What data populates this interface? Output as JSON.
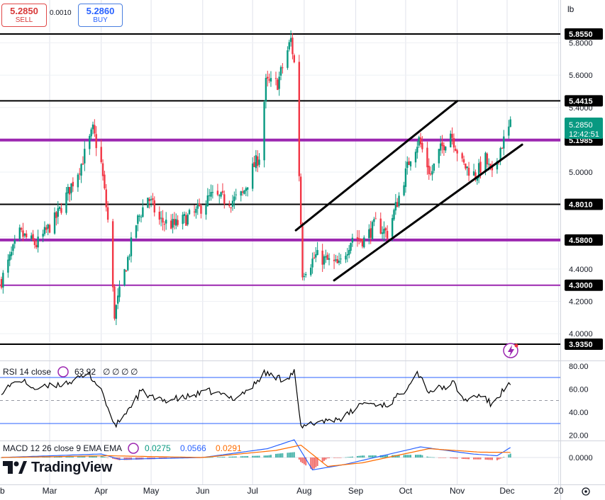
{
  "header": {
    "sell_price": "5.2850",
    "sell_label": "SELL",
    "spread": "0.0010",
    "buy_price": "5.2860",
    "buy_label": "BUY",
    "scale_unit": "lb"
  },
  "brand": {
    "name": "TradingView"
  },
  "colors": {
    "bull": "#089981",
    "bear": "#f23645",
    "level_black": "#000000",
    "level_purple": "#9c27b0",
    "channel": "#000000",
    "rsi": "#000000",
    "rsi_band": "#2962ff",
    "macd": "#2962ff",
    "signal": "#ff6d00",
    "price_label_bg": "#089981"
  },
  "chart_data": [
    {
      "type": "candlestick",
      "title": "",
      "xlabel": "",
      "ylabel": "",
      "ylim": [
        3.9,
        6.0
      ],
      "y_ticks": [
        "5.8000",
        "5.6000",
        "5.4000",
        "5.2000",
        "5.0000",
        "4.8000",
        "4.6000",
        "4.4000",
        "4.2000",
        "4.0000"
      ],
      "x_tick_labels": [
        "b",
        "Mar",
        "Apr",
        "May",
        "Jun",
        "Jul",
        "Aug",
        "Sep",
        "Oct",
        "Nov",
        "Dec",
        "20"
      ],
      "horizontal_levels": [
        {
          "value": 5.855,
          "label": "5.8550",
          "color": "black"
        },
        {
          "value": 5.4415,
          "label": "5.4415",
          "color": "black"
        },
        {
          "value": 5.1985,
          "label": "5.1985",
          "color": "purple"
        },
        {
          "value": 4.801,
          "label": "4.8010",
          "color": "black"
        },
        {
          "value": 4.58,
          "label": "4.5800",
          "color": "purple"
        },
        {
          "value": 4.3,
          "label": "4.3000",
          "color": "purple"
        },
        {
          "value": 3.935,
          "label": "3.9350",
          "color": "black"
        }
      ],
      "channel_lines": [
        {
          "from": {
            "date": "2024-07-27",
            "price": 4.64
          },
          "to": {
            "date": "2024-11-01",
            "price": 5.44
          }
        },
        {
          "from": {
            "date": "2024-08-19",
            "price": 4.33
          },
          "to": {
            "date": "2024-12-10",
            "price": 5.17
          }
        }
      ],
      "last_price": {
        "value": "5.2850",
        "countdown": "12:42:51"
      },
      "anchors": [
        {
          "date": "2024-02-01",
          "price": 4.33
        },
        {
          "date": "2024-02-12",
          "price": 4.62
        },
        {
          "date": "2024-02-22",
          "price": 4.55
        },
        {
          "date": "2024-03-05",
          "price": 4.72
        },
        {
          "date": "2024-03-20",
          "price": 5.05
        },
        {
          "date": "2024-03-27",
          "price": 5.26
        },
        {
          "date": "2024-04-01",
          "price": 5.05
        },
        {
          "date": "2024-04-05",
          "price": 4.7
        },
        {
          "date": "2024-04-09",
          "price": 4.12
        },
        {
          "date": "2024-04-12",
          "price": 4.25
        },
        {
          "date": "2024-04-22",
          "price": 4.68
        },
        {
          "date": "2024-04-29",
          "price": 4.85
        },
        {
          "date": "2024-05-06",
          "price": 4.7
        },
        {
          "date": "2024-05-15",
          "price": 4.67
        },
        {
          "date": "2024-05-28",
          "price": 4.75
        },
        {
          "date": "2024-06-06",
          "price": 4.85
        },
        {
          "date": "2024-06-18",
          "price": 4.82
        },
        {
          "date": "2024-06-25",
          "price": 4.86
        },
        {
          "date": "2024-07-01",
          "price": 5.02
        },
        {
          "date": "2024-07-05",
          "price": 5.1
        },
        {
          "date": "2024-07-09",
          "price": 5.55
        },
        {
          "date": "2024-07-16",
          "price": 5.55
        },
        {
          "date": "2024-07-24",
          "price": 5.82
        },
        {
          "date": "2024-07-27",
          "price": 5.6
        },
        {
          "date": "2024-07-31",
          "price": 4.38
        },
        {
          "date": "2024-08-08",
          "price": 4.48
        },
        {
          "date": "2024-08-15",
          "price": 4.45
        },
        {
          "date": "2024-08-22",
          "price": 4.42
        },
        {
          "date": "2024-08-30",
          "price": 4.6
        },
        {
          "date": "2024-09-06",
          "price": 4.58
        },
        {
          "date": "2024-09-13",
          "price": 4.68
        },
        {
          "date": "2024-09-20",
          "price": 4.62
        },
        {
          "date": "2024-09-27",
          "price": 4.85
        },
        {
          "date": "2024-10-04",
          "price": 5.1
        },
        {
          "date": "2024-10-09",
          "price": 5.2
        },
        {
          "date": "2024-10-16",
          "price": 4.98
        },
        {
          "date": "2024-10-21",
          "price": 5.12
        },
        {
          "date": "2024-10-28",
          "price": 5.25
        },
        {
          "date": "2024-11-04",
          "price": 5.05
        },
        {
          "date": "2024-11-12",
          "price": 4.98
        },
        {
          "date": "2024-11-18",
          "price": 5.08
        },
        {
          "date": "2024-11-22",
          "price": 4.97
        },
        {
          "date": "2024-11-27",
          "price": 5.15
        },
        {
          "date": "2024-12-03",
          "price": 5.29
        }
      ]
    },
    {
      "type": "line",
      "title": "RSI 14 close",
      "value": "63.92",
      "placeholders": [
        "∅",
        "∅",
        "∅",
        "∅"
      ],
      "ylim": [
        17,
        82
      ],
      "y_ticks": [
        "80.00",
        "60.00",
        "40.00",
        "20.00"
      ],
      "bands": [
        70,
        50,
        30
      ],
      "anchors": [
        {
          "date": "2024-02-01",
          "value": 58
        },
        {
          "date": "2024-02-12",
          "value": 68
        },
        {
          "date": "2024-02-22",
          "value": 60
        },
        {
          "date": "2024-03-10",
          "value": 65
        },
        {
          "date": "2024-03-25",
          "value": 72
        },
        {
          "date": "2024-04-01",
          "value": 60
        },
        {
          "date": "2024-04-09",
          "value": 27
        },
        {
          "date": "2024-04-15",
          "value": 38
        },
        {
          "date": "2024-04-25",
          "value": 58
        },
        {
          "date": "2024-05-05",
          "value": 50
        },
        {
          "date": "2024-05-20",
          "value": 52
        },
        {
          "date": "2024-06-05",
          "value": 58
        },
        {
          "date": "2024-06-20",
          "value": 52
        },
        {
          "date": "2024-07-01",
          "value": 62
        },
        {
          "date": "2024-07-08",
          "value": 74
        },
        {
          "date": "2024-07-20",
          "value": 68
        },
        {
          "date": "2024-07-26",
          "value": 75
        },
        {
          "date": "2024-07-30",
          "value": 26
        },
        {
          "date": "2024-08-10",
          "value": 32
        },
        {
          "date": "2024-08-25",
          "value": 35
        },
        {
          "date": "2024-09-05",
          "value": 48
        },
        {
          "date": "2024-09-20",
          "value": 46
        },
        {
          "date": "2024-09-30",
          "value": 58
        },
        {
          "date": "2024-10-05",
          "value": 70
        },
        {
          "date": "2024-10-08",
          "value": 75
        },
        {
          "date": "2024-10-15",
          "value": 58
        },
        {
          "date": "2024-10-25",
          "value": 62
        },
        {
          "date": "2024-10-30",
          "value": 65
        },
        {
          "date": "2024-11-05",
          "value": 50
        },
        {
          "date": "2024-11-15",
          "value": 55
        },
        {
          "date": "2024-11-22",
          "value": 46
        },
        {
          "date": "2024-11-28",
          "value": 58
        },
        {
          "date": "2024-12-03",
          "value": 64
        }
      ]
    },
    {
      "type": "line",
      "title": "MACD 12 26 close 9 EMA EMA",
      "values": [
        "0.0275",
        "0.0566",
        "0.0291"
      ],
      "ylim": [
        -0.12,
        0.12
      ],
      "y_ticks": [
        "0.0000"
      ],
      "series": [
        {
          "key": "macd",
          "anchors": [
            {
              "date": "2024-02-01",
              "value": 0.0
            },
            {
              "date": "2024-04-01",
              "value": 0.02
            },
            {
              "date": "2024-04-12",
              "value": -0.01
            },
            {
              "date": "2024-06-01",
              "value": 0.0
            },
            {
              "date": "2024-07-10",
              "value": 0.05
            },
            {
              "date": "2024-07-26",
              "value": 0.1
            },
            {
              "date": "2024-08-06",
              "value": -0.07
            },
            {
              "date": "2024-08-25",
              "value": -0.04
            },
            {
              "date": "2024-10-10",
              "value": 0.06
            },
            {
              "date": "2024-11-10",
              "value": 0.02
            },
            {
              "date": "2024-11-25",
              "value": 0.01
            },
            {
              "date": "2024-12-03",
              "value": 0.0566
            }
          ]
        },
        {
          "key": "signal",
          "anchors": [
            {
              "date": "2024-02-01",
              "value": 0.0
            },
            {
              "date": "2024-04-05",
              "value": 0.01
            },
            {
              "date": "2024-06-01",
              "value": 0.0
            },
            {
              "date": "2024-07-15",
              "value": 0.04
            },
            {
              "date": "2024-07-30",
              "value": 0.07
            },
            {
              "date": "2024-08-15",
              "value": -0.05
            },
            {
              "date": "2024-09-05",
              "value": -0.03
            },
            {
              "date": "2024-10-15",
              "value": 0.05
            },
            {
              "date": "2024-11-15",
              "value": 0.03
            },
            {
              "date": "2024-12-03",
              "value": 0.0291
            }
          ]
        }
      ]
    }
  ]
}
